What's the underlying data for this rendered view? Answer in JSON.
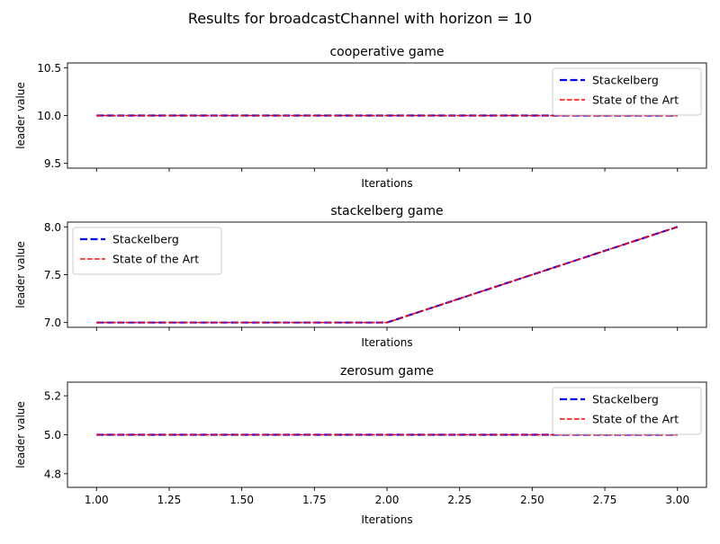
{
  "suptitle": "Results for broadcastChannel with horizon = 10",
  "colors": {
    "stackelberg": "#0000ff",
    "state_of_the_art": "#ff0000",
    "axis": "#000000"
  },
  "chart_data": [
    {
      "type": "line",
      "title": "cooperative game",
      "xlabel": "Iterations",
      "ylabel": "leader value",
      "x": [
        1,
        2,
        3
      ],
      "xlim": [
        0.9,
        3.1
      ],
      "ylim": [
        9.45,
        10.55
      ],
      "xticks": [
        1.0,
        1.25,
        1.5,
        1.75,
        2.0,
        2.25,
        2.5,
        2.75,
        3.0
      ],
      "xtick_labels_visible": false,
      "yticks": [
        9.5,
        10.0,
        10.5
      ],
      "ytick_labels": [
        "9.5",
        "10.0",
        "10.5"
      ],
      "grid": false,
      "legend": "upper-right",
      "series": [
        {
          "name": "Stackelberg",
          "values": [
            10,
            10,
            10
          ],
          "color": "#0000ff",
          "style": "dashed-thick"
        },
        {
          "name": "State of the Art",
          "values": [
            10,
            10,
            10
          ],
          "color": "#ff0000",
          "style": "dashed"
        }
      ]
    },
    {
      "type": "line",
      "title": "stackelberg game",
      "xlabel": "Iterations",
      "ylabel": "leader value",
      "x": [
        1,
        2,
        3
      ],
      "xlim": [
        0.9,
        3.1
      ],
      "ylim": [
        6.95,
        8.05
      ],
      "xticks": [
        1.0,
        1.25,
        1.5,
        1.75,
        2.0,
        2.25,
        2.5,
        2.75,
        3.0
      ],
      "xtick_labels_visible": false,
      "yticks": [
        7.0,
        7.5,
        8.0
      ],
      "ytick_labels": [
        "7.0",
        "7.5",
        "8.0"
      ],
      "grid": false,
      "legend": "upper-left",
      "series": [
        {
          "name": "Stackelberg",
          "values": [
            7,
            7,
            8
          ],
          "color": "#0000ff",
          "style": "dashed-thick"
        },
        {
          "name": "State of the Art",
          "values": [
            7,
            7,
            8
          ],
          "color": "#ff0000",
          "style": "dashed"
        }
      ]
    },
    {
      "type": "line",
      "title": "zerosum game",
      "xlabel": "Iterations",
      "ylabel": "leader value",
      "x": [
        1,
        2,
        3
      ],
      "xlim": [
        0.9,
        3.1
      ],
      "ylim": [
        4.73,
        5.27
      ],
      "xticks": [
        1.0,
        1.25,
        1.5,
        1.75,
        2.0,
        2.25,
        2.5,
        2.75,
        3.0
      ],
      "xtick_labels_visible": true,
      "xtick_labels": [
        "1.00",
        "1.25",
        "1.50",
        "1.75",
        "2.00",
        "2.25",
        "2.50",
        "2.75",
        "3.00"
      ],
      "yticks": [
        4.8,
        5.0,
        5.2
      ],
      "ytick_labels": [
        "4.8",
        "5.0",
        "5.2"
      ],
      "grid": false,
      "legend": "upper-right",
      "series": [
        {
          "name": "Stackelberg",
          "values": [
            5,
            5,
            5
          ],
          "color": "#0000ff",
          "style": "dashed-thick"
        },
        {
          "name": "State of the Art",
          "values": [
            5,
            5,
            5
          ],
          "color": "#ff0000",
          "style": "dashed"
        }
      ]
    }
  ]
}
